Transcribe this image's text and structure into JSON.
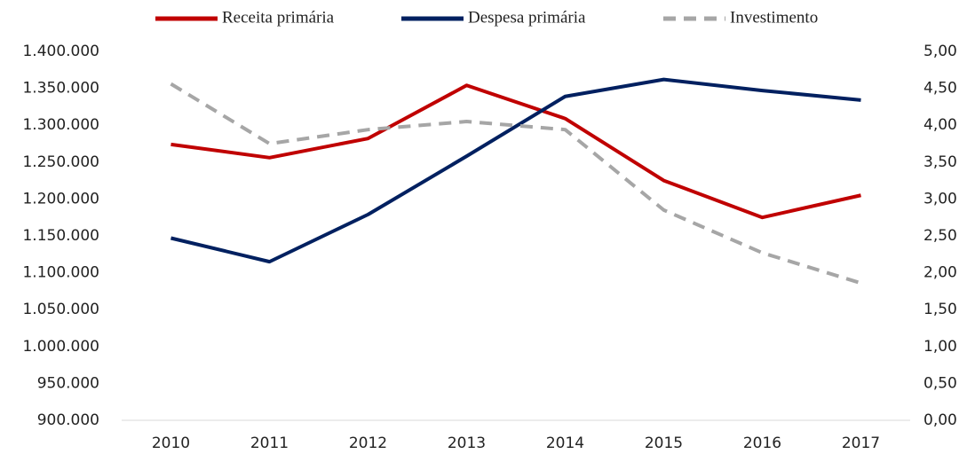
{
  "chart_data": {
    "type": "line",
    "categories": [
      "2010",
      "2011",
      "2012",
      "2013",
      "2014",
      "2015",
      "2016",
      "2017"
    ],
    "series": [
      {
        "name": "Receita primária",
        "color": "#c00000",
        "values": [
          1274000,
          1256000,
          1282000,
          1354000,
          1309000,
          1225000,
          1175000,
          1205000
        ]
      },
      {
        "name": "Despesa primária",
        "color": "#002060",
        "values": [
          1147000,
          1115000,
          1179000,
          1258000,
          1339000,
          1362000,
          1347000,
          1334000
        ]
      },
      {
        "name": "Investimento",
        "color": "#a6a6a6",
        "dashed": true,
        "axis": "y2",
        "values": [
          4.56,
          3.75,
          3.94,
          4.05,
          3.94,
          2.85,
          2.27,
          1.86
        ]
      }
    ],
    "ylim": [
      900000,
      1400000
    ],
    "yticks": [
      {
        "value": 900000,
        "label": "900.000"
      },
      {
        "value": 950000,
        "label": "950.000"
      },
      {
        "value": 1000000,
        "label": "1.000.000"
      },
      {
        "value": 1050000,
        "label": "1.050.000"
      },
      {
        "value": 1100000,
        "label": "1.100.000"
      },
      {
        "value": 1150000,
        "label": "1.150.000"
      },
      {
        "value": 1200000,
        "label": "1.200.000"
      },
      {
        "value": 1250000,
        "label": "1.250.000"
      },
      {
        "value": 1300000,
        "label": "1.300.000"
      },
      {
        "value": 1350000,
        "label": "1.350.000"
      },
      {
        "value": 1400000,
        "label": "1.400.000"
      }
    ],
    "y2lim": [
      0,
      5
    ],
    "y2ticks": [
      {
        "value": 0,
        "label": "0,00"
      },
      {
        "value": 0.5,
        "label": "0,50"
      },
      {
        "value": 1,
        "label": "1,00"
      },
      {
        "value": 1.5,
        "label": "1,50"
      },
      {
        "value": 2,
        "label": "2,00"
      },
      {
        "value": 2.5,
        "label": "2,50"
      },
      {
        "value": 3,
        "label": "3,00"
      },
      {
        "value": 3.5,
        "label": "3,50"
      },
      {
        "value": 4,
        "label": "4,00"
      },
      {
        "value": 4.5,
        "label": "4,50"
      },
      {
        "value": 5,
        "label": "5,00"
      }
    ],
    "legend": "top",
    "grid": false
  }
}
